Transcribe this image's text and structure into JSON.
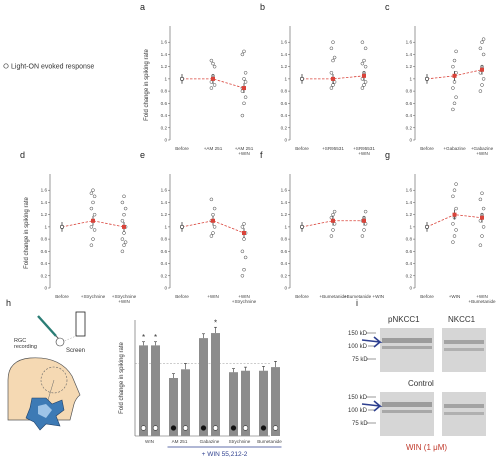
{
  "legend": {
    "text": "Light-ON evoked response"
  },
  "chart_data": [
    {
      "id": "a",
      "type": "scatter",
      "panel_label": "a",
      "ylabel": "Fold change in spiking rate",
      "yticks": [
        "1.6",
        "1.4",
        "1.2",
        "1",
        "0.8",
        "0.6",
        "0.4",
        "0.2",
        "0"
      ],
      "ylim": [
        0,
        1.8
      ],
      "categories": [
        "Before",
        "+AM 251",
        "+AM 251\n+WIN"
      ],
      "means": [
        1.0,
        1.0,
        0.85
      ],
      "points": [
        [],
        [
          0.95,
          1.05,
          1.2,
          1.3,
          1.25,
          0.9,
          0.85
        ],
        [
          0.4,
          0.6,
          0.7,
          0.8,
          1.0,
          1.1,
          1.4,
          1.45,
          0.95,
          0.85
        ]
      ]
    },
    {
      "id": "b",
      "type": "scatter",
      "panel_label": "b",
      "ylabel": "",
      "yticks": [
        "1.6",
        "1.4",
        "1.2",
        "1",
        "0.8",
        "0.6",
        "0.4",
        "0.2",
        "0"
      ],
      "ylim": [
        0,
        1.8
      ],
      "categories": [
        "Before",
        "+SR95531",
        "+SR95531\n+WIN"
      ],
      "means": [
        1.0,
        1.0,
        1.05
      ],
      "points": [
        [],
        [
          0.85,
          0.9,
          0.95,
          1.1,
          1.3,
          1.35,
          1.5,
          1.6
        ],
        [
          0.85,
          0.9,
          0.95,
          1.0,
          1.1,
          1.2,
          1.25,
          1.3,
          1.5,
          1.6
        ]
      ]
    },
    {
      "id": "c",
      "type": "scatter",
      "panel_label": "c",
      "ylabel": "",
      "yticks": [
        "1.6",
        "1.4",
        "1.2",
        "1",
        "0.8",
        "0.6",
        "0.4",
        "0.2",
        "0"
      ],
      "ylim": [
        0,
        1.8
      ],
      "categories": [
        "Before",
        "+Gabazine",
        "+Gabazine\n+WIN"
      ],
      "means": [
        1.0,
        1.05,
        1.15
      ],
      "points": [
        [],
        [
          0.5,
          0.6,
          0.7,
          0.85,
          0.95,
          1.1,
          1.2,
          1.3,
          1.45
        ],
        [
          0.8,
          0.9,
          1.0,
          1.1,
          1.2,
          1.4,
          1.5,
          1.6,
          1.65
        ]
      ]
    },
    {
      "id": "d",
      "type": "scatter",
      "panel_label": "d",
      "ylabel": "Fold change in spiking rate",
      "yticks": [
        "1.6",
        "1.4",
        "1.2",
        "1",
        "0.8",
        "0.6",
        "0.4",
        "0.2",
        "0"
      ],
      "ylim": [
        0,
        1.8
      ],
      "categories": [
        "Before",
        "+Strychnine",
        "+Strychnine\n+WIN"
      ],
      "means": [
        1.0,
        1.1,
        1.0
      ],
      "points": [
        [],
        [
          0.7,
          0.8,
          0.95,
          1.0,
          1.1,
          1.2,
          1.3,
          1.4,
          1.5,
          1.55,
          1.6
        ],
        [
          0.6,
          0.7,
          0.75,
          0.8,
          0.9,
          1.0,
          1.1,
          1.2,
          1.3,
          1.4,
          1.5
        ]
      ]
    },
    {
      "id": "e",
      "type": "scatter",
      "panel_label": "e",
      "ylabel": "",
      "yticks": [
        "1.6",
        "1.4",
        "1.2",
        "1",
        "0.8",
        "0.6",
        "0.4",
        "0.2",
        "0"
      ],
      "ylim": [
        0,
        1.8
      ],
      "categories": [
        "Before",
        "+WIN",
        "+WIN\n+Strychnine"
      ],
      "means": [
        1.0,
        1.1,
        0.9
      ],
      "points": [
        [],
        [
          0.85,
          0.9,
          1.0,
          1.1,
          1.2,
          1.3,
          1.45
        ],
        [
          0.2,
          0.3,
          0.5,
          0.6,
          0.8,
          0.9,
          1.0,
          1.05
        ]
      ]
    },
    {
      "id": "f",
      "type": "scatter",
      "panel_label": "f",
      "ylabel": "",
      "yticks": [
        "1.6",
        "1.4",
        "1.2",
        "1",
        "0.8",
        "0.6",
        "0.4",
        "0.2",
        "0"
      ],
      "ylim": [
        0,
        1.8
      ],
      "categories": [
        "Before",
        "+Bumetanide",
        "+Bumetanide +WIN"
      ],
      "means": [
        1.0,
        1.1,
        1.1
      ],
      "points": [
        [],
        [
          0.85,
          0.95,
          1.05,
          1.15,
          1.2,
          1.25
        ],
        [
          0.85,
          0.95,
          1.05,
          1.1,
          1.15,
          1.25
        ]
      ]
    },
    {
      "id": "g",
      "type": "scatter",
      "panel_label": "g",
      "ylabel": "",
      "yticks": [
        "1.6",
        "1.4",
        "1.2",
        "1",
        "0.8",
        "0.6",
        "0.4",
        "0.2",
        "0"
      ],
      "ylim": [
        0,
        1.8
      ],
      "categories": [
        "Before",
        "+WIN",
        "+WIN\n+Bumetanide"
      ],
      "means": [
        1.0,
        1.2,
        1.15
      ],
      "points": [
        [],
        [
          0.75,
          0.85,
          0.95,
          1.05,
          1.15,
          1.3,
          1.5,
          1.6,
          1.7
        ],
        [
          0.7,
          0.85,
          1.0,
          1.1,
          1.2,
          1.3,
          1.45,
          1.55
        ]
      ]
    },
    {
      "id": "h",
      "type": "bar",
      "panel_label": "h",
      "ylabel": "Fold change in spiking rate",
      "ylim": [
        0,
        1.6
      ],
      "group_labels": [
        "WIN",
        "AM 251",
        "Gabazine",
        "Strychnine",
        "Bumetanide"
      ],
      "bracket_label": "+ WIN 55,212-2",
      "values": [
        1.25,
        1.25,
        0.8,
        0.92,
        1.35,
        1.42,
        0.88,
        0.9,
        0.9,
        0.95
      ],
      "errors": [
        0.05,
        0.05,
        0.06,
        0.08,
        0.06,
        0.08,
        0.05,
        0.05,
        0.06,
        0.08
      ],
      "markers": [
        "white",
        "white",
        "black",
        "white",
        "black",
        "white",
        "black",
        "white",
        "black",
        "white"
      ],
      "significance": [
        "*",
        "*",
        "",
        "",
        "",
        "*",
        "",
        "",
        "",
        ""
      ]
    }
  ],
  "panel_h": {
    "screen_label": "Screen",
    "rgc_label": "RGC\nrecording"
  },
  "panel_i": {
    "label": "i",
    "col_labels": [
      "pNKCC1",
      "NKCC1"
    ],
    "kd_labels": [
      "150 kD",
      "100 kD",
      "75 kD"
    ],
    "control_label": "Control",
    "treatment_label": "WIN (1 μM)"
  },
  "colors": {
    "mean": "#d9433a",
    "dashed": "#d9433a",
    "arrow": "#2d3f8f",
    "treatment": "#c0392b",
    "bar": "#8c8c8c"
  }
}
